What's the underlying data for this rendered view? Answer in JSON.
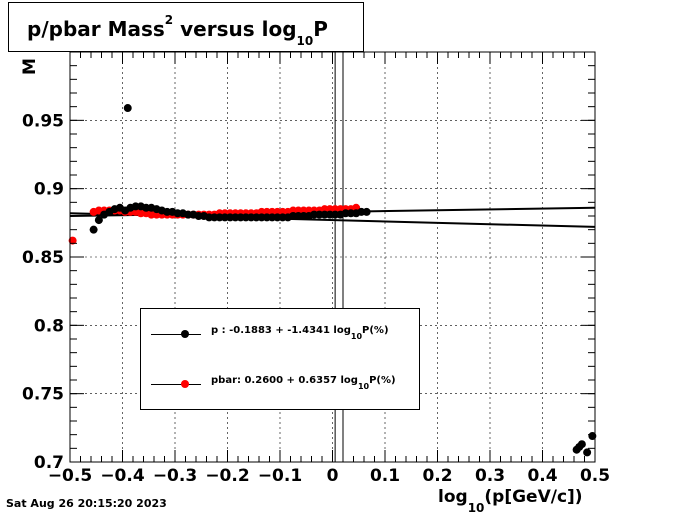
{
  "chart_data": {
    "type": "scatter",
    "title": {
      "main": "p/pbar Mass",
      "sup": "2",
      "mid": " versus log",
      "sub": "10",
      "end": "P"
    },
    "xlabel": {
      "pre": "log",
      "sub": "10",
      "post": "(p[GeV/c])"
    },
    "ylabel": "M",
    "xlim": [
      -0.5,
      0.5
    ],
    "ylim": [
      0.7,
      1.0
    ],
    "x_ticks": [
      -0.5,
      -0.4,
      -0.3,
      -0.2,
      -0.1,
      0,
      0.1,
      0.2,
      0.3,
      0.4,
      0.5
    ],
    "x_tick_labels": [
      "−0.5",
      "−0.4",
      "−0.3",
      "−0.2",
      "−0.1",
      "0",
      "0.1",
      "0.2",
      "0.3",
      "0.4",
      "0.5"
    ],
    "y_ticks": [
      0.7,
      0.75,
      0.8,
      0.85,
      0.9,
      0.95
    ],
    "y_tick_labels": [
      "0.7",
      "0.75",
      "0.8",
      "0.85",
      "0.9",
      "0.95"
    ],
    "grid": true,
    "vertical_lines_x": [
      0.005,
      0.02
    ],
    "series": [
      {
        "name": "p",
        "color": "#000000",
        "points": [
          [
            -0.455,
            0.87
          ],
          [
            -0.445,
            0.877
          ],
          [
            -0.435,
            0.881
          ],
          [
            -0.425,
            0.883
          ],
          [
            -0.415,
            0.885
          ],
          [
            -0.405,
            0.886
          ],
          [
            -0.395,
            0.884
          ],
          [
            -0.39,
            0.959
          ],
          [
            -0.385,
            0.886
          ],
          [
            -0.375,
            0.887
          ],
          [
            -0.365,
            0.887
          ],
          [
            -0.355,
            0.886
          ],
          [
            -0.345,
            0.886
          ],
          [
            -0.335,
            0.885
          ],
          [
            -0.325,
            0.884
          ],
          [
            -0.315,
            0.883
          ],
          [
            -0.305,
            0.883
          ],
          [
            -0.295,
            0.882
          ],
          [
            -0.285,
            0.882
          ],
          [
            -0.275,
            0.881
          ],
          [
            -0.265,
            0.881
          ],
          [
            -0.255,
            0.88
          ],
          [
            -0.245,
            0.88
          ],
          [
            -0.235,
            0.879
          ],
          [
            -0.225,
            0.879
          ],
          [
            -0.215,
            0.879
          ],
          [
            -0.205,
            0.879
          ],
          [
            -0.195,
            0.879
          ],
          [
            -0.185,
            0.879
          ],
          [
            -0.175,
            0.879
          ],
          [
            -0.165,
            0.879
          ],
          [
            -0.155,
            0.879
          ],
          [
            -0.145,
            0.879
          ],
          [
            -0.135,
            0.879
          ],
          [
            -0.125,
            0.879
          ],
          [
            -0.115,
            0.879
          ],
          [
            -0.105,
            0.879
          ],
          [
            -0.095,
            0.879
          ],
          [
            -0.085,
            0.879
          ],
          [
            -0.075,
            0.88
          ],
          [
            -0.065,
            0.88
          ],
          [
            -0.055,
            0.88
          ],
          [
            -0.045,
            0.88
          ],
          [
            -0.035,
            0.881
          ],
          [
            -0.025,
            0.881
          ],
          [
            -0.015,
            0.881
          ],
          [
            -0.005,
            0.881
          ],
          [
            0.005,
            0.881
          ],
          [
            0.015,
            0.881
          ],
          [
            0.025,
            0.882
          ],
          [
            0.035,
            0.882
          ],
          [
            0.045,
            0.882
          ],
          [
            0.055,
            0.883
          ],
          [
            0.065,
            0.883
          ],
          [
            0.465,
            0.709
          ],
          [
            0.475,
            0.713
          ],
          [
            0.47,
            0.711
          ],
          [
            0.485,
            0.707
          ],
          [
            0.495,
            0.719
          ]
        ],
        "fit_label": {
          "pre": "p   : -0.1883 + -1.4341 log",
          "sub": "10",
          "post": "P(%)"
        },
        "fit_line": [
          [
            -0.5,
            0.88
          ],
          [
            0.5,
            0.886
          ]
        ]
      },
      {
        "name": "pbar",
        "color": "#ff0000",
        "points": [
          [
            -0.495,
            0.862
          ],
          [
            -0.455,
            0.883
          ],
          [
            -0.445,
            0.884
          ],
          [
            -0.435,
            0.884
          ],
          [
            -0.425,
            0.884
          ],
          [
            -0.415,
            0.884
          ],
          [
            -0.405,
            0.884
          ],
          [
            -0.395,
            0.883
          ],
          [
            -0.385,
            0.883
          ],
          [
            -0.375,
            0.883
          ],
          [
            -0.365,
            0.882
          ],
          [
            -0.355,
            0.882
          ],
          [
            -0.345,
            0.881
          ],
          [
            -0.335,
            0.881
          ],
          [
            -0.325,
            0.881
          ],
          [
            -0.315,
            0.881
          ],
          [
            -0.305,
            0.881
          ],
          [
            -0.295,
            0.881
          ],
          [
            -0.285,
            0.881
          ],
          [
            -0.275,
            0.881
          ],
          [
            -0.265,
            0.881
          ],
          [
            -0.255,
            0.881
          ],
          [
            -0.245,
            0.881
          ],
          [
            -0.235,
            0.881
          ],
          [
            -0.225,
            0.881
          ],
          [
            -0.215,
            0.882
          ],
          [
            -0.205,
            0.882
          ],
          [
            -0.195,
            0.882
          ],
          [
            -0.185,
            0.882
          ],
          [
            -0.175,
            0.882
          ],
          [
            -0.165,
            0.882
          ],
          [
            -0.155,
            0.882
          ],
          [
            -0.145,
            0.882
          ],
          [
            -0.135,
            0.883
          ],
          [
            -0.125,
            0.883
          ],
          [
            -0.115,
            0.883
          ],
          [
            -0.105,
            0.883
          ],
          [
            -0.095,
            0.883
          ],
          [
            -0.085,
            0.883
          ],
          [
            -0.075,
            0.884
          ],
          [
            -0.065,
            0.884
          ],
          [
            -0.055,
            0.884
          ],
          [
            -0.045,
            0.884
          ],
          [
            -0.035,
            0.884
          ],
          [
            -0.025,
            0.884
          ],
          [
            -0.015,
            0.885
          ],
          [
            -0.005,
            0.885
          ],
          [
            0.005,
            0.885
          ],
          [
            0.015,
            0.885
          ],
          [
            0.025,
            0.885
          ],
          [
            0.035,
            0.885
          ],
          [
            0.045,
            0.886
          ]
        ],
        "fit_label": {
          "pre": "pbar: 0.2600 + 0.6357 log",
          "sub": "10",
          "post": "P(%)"
        },
        "fit_line": [
          [
            -0.5,
            0.882
          ],
          [
            0.5,
            0.872
          ]
        ]
      }
    ],
    "timestamp": "Sat Aug 26 20:15:20 2023"
  }
}
